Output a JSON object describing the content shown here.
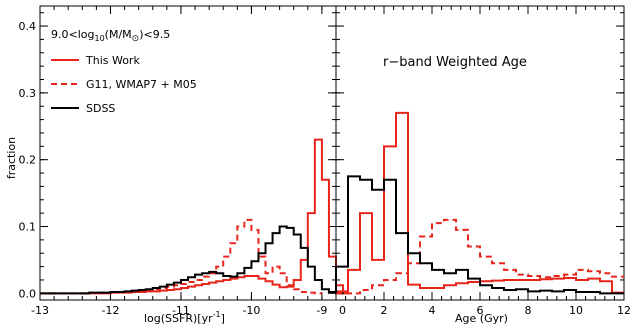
{
  "chart_data": [
    {
      "type": "line",
      "panel": "left",
      "xlabel": "log(SSFR)[yr",
      "xlabel_sup": "-1",
      "xlabel_end": "]",
      "ylabel": "fraction",
      "xlim": [
        -13,
        -8.8
      ],
      "ylim": [
        -0.01,
        0.43
      ],
      "xticks": [
        -13,
        -12,
        -11,
        -10,
        -9
      ],
      "xtick_labels": [
        "-13",
        "-12",
        "-11",
        "-10",
        "-9"
      ],
      "yticks": [
        0.0,
        0.1,
        0.2,
        0.3,
        0.4
      ],
      "ytick_labels": [
        "0.0",
        "0.1",
        "0.2",
        "0.3",
        "0.4"
      ],
      "annotation": {
        "prefix": "9.0<log",
        "sub": "10",
        "mid": "(M/M",
        "sun": "⊙",
        "suffix": ")<9.5"
      },
      "legend": [
        {
          "label": "This Work",
          "color": "#e8251b",
          "dash": "solid"
        },
        {
          "label": "G11, WMAP7 + M05",
          "color": "#e8251b",
          "dash": "dashed"
        },
        {
          "label": "SDSS",
          "color": "#000000",
          "dash": "solid"
        }
      ],
      "series": [
        {
          "name": "This Work",
          "color": "#e8251b",
          "dash": "solid",
          "step": 0.1,
          "x_start": -13.0,
          "values": [
            0.0,
            0.0,
            0.0,
            0.0,
            0.0,
            0.0,
            0.0,
            0.0,
            0.0,
            0.0,
            0.001,
            0.001,
            0.001,
            0.002,
            0.002,
            0.003,
            0.003,
            0.004,
            0.005,
            0.006,
            0.008,
            0.01,
            0.012,
            0.014,
            0.016,
            0.018,
            0.02,
            0.022,
            0.024,
            0.026,
            0.026,
            0.022,
            0.018,
            0.013,
            0.009,
            0.01,
            0.02,
            0.05,
            0.12,
            0.23,
            0.17,
            0.055,
            0.012,
            0.0
          ]
        },
        {
          "name": "G11, WMAP7 + M05",
          "color": "#e8251b",
          "dash": "dashed",
          "step": 0.1,
          "x_start": -13.0,
          "values": [
            0.0,
            0.0,
            0.0,
            0.0,
            0.0,
            0.0,
            0.0,
            0.001,
            0.001,
            0.001,
            0.001,
            0.002,
            0.002,
            0.003,
            0.004,
            0.005,
            0.006,
            0.008,
            0.01,
            0.012,
            0.014,
            0.017,
            0.02,
            0.025,
            0.03,
            0.04,
            0.055,
            0.075,
            0.1,
            0.11,
            0.095,
            0.055,
            0.03,
            0.04,
            0.03,
            0.012,
            0.006,
            0.002,
            0.001,
            0.0
          ]
        },
        {
          "name": "SDSS",
          "color": "#000000",
          "dash": "solid",
          "step": 0.1,
          "x_start": -13.0,
          "values": [
            0.0,
            0.0,
            0.0,
            0.0,
            0.0,
            0.0,
            0.0,
            0.001,
            0.001,
            0.001,
            0.002,
            0.002,
            0.003,
            0.004,
            0.005,
            0.006,
            0.008,
            0.01,
            0.013,
            0.016,
            0.02,
            0.024,
            0.028,
            0.03,
            0.032,
            0.03,
            0.026,
            0.025,
            0.03,
            0.038,
            0.048,
            0.06,
            0.075,
            0.09,
            0.1,
            0.098,
            0.088,
            0.068,
            0.04,
            0.02,
            0.006,
            0.002,
            0.0
          ]
        }
      ]
    },
    {
      "type": "line",
      "panel": "right",
      "title": "r−band Weighted Age",
      "xlabel": "Age (Gyr)",
      "xlim": [
        0,
        12
      ],
      "ylim": [
        -0.01,
        0.43
      ],
      "xticks": [
        0,
        2,
        4,
        6,
        8,
        10,
        12
      ],
      "xtick_labels": [
        "0",
        "2",
        "4",
        "6",
        "8",
        "10",
        "12"
      ],
      "series": [
        {
          "name": "This Work",
          "color": "#e8251b",
          "dash": "solid",
          "step": 0.5,
          "x_start": 0.0,
          "values": [
            0.003,
            0.035,
            0.12,
            0.05,
            0.22,
            0.27,
            0.013,
            0.008,
            0.008,
            0.012,
            0.015,
            0.017,
            0.018,
            0.019,
            0.02,
            0.02,
            0.02,
            0.021,
            0.022,
            0.023,
            0.02,
            0.022,
            0.018,
            0.001
          ]
        },
        {
          "name": "G11, WMAP7 + M05",
          "color": "#e8251b",
          "dash": "dashed",
          "step": 0.5,
          "x_start": 0.0,
          "values": [
            0.0,
            0.0,
            0.005,
            0.012,
            0.02,
            0.03,
            0.045,
            0.085,
            0.105,
            0.11,
            0.095,
            0.07,
            0.055,
            0.045,
            0.035,
            0.028,
            0.026,
            0.024,
            0.026,
            0.028,
            0.035,
            0.033,
            0.03,
            0.025
          ]
        },
        {
          "name": "SDSS",
          "color": "#000000",
          "dash": "solid",
          "step": 0.5,
          "x_start": 0.0,
          "values": [
            0.04,
            0.175,
            0.17,
            0.155,
            0.17,
            0.09,
            0.06,
            0.045,
            0.035,
            0.03,
            0.035,
            0.022,
            0.012,
            0.008,
            0.005,
            0.006,
            0.003,
            0.004,
            0.003,
            0.005,
            0.002,
            0.002,
            0.0,
            0.0
          ]
        }
      ]
    }
  ]
}
